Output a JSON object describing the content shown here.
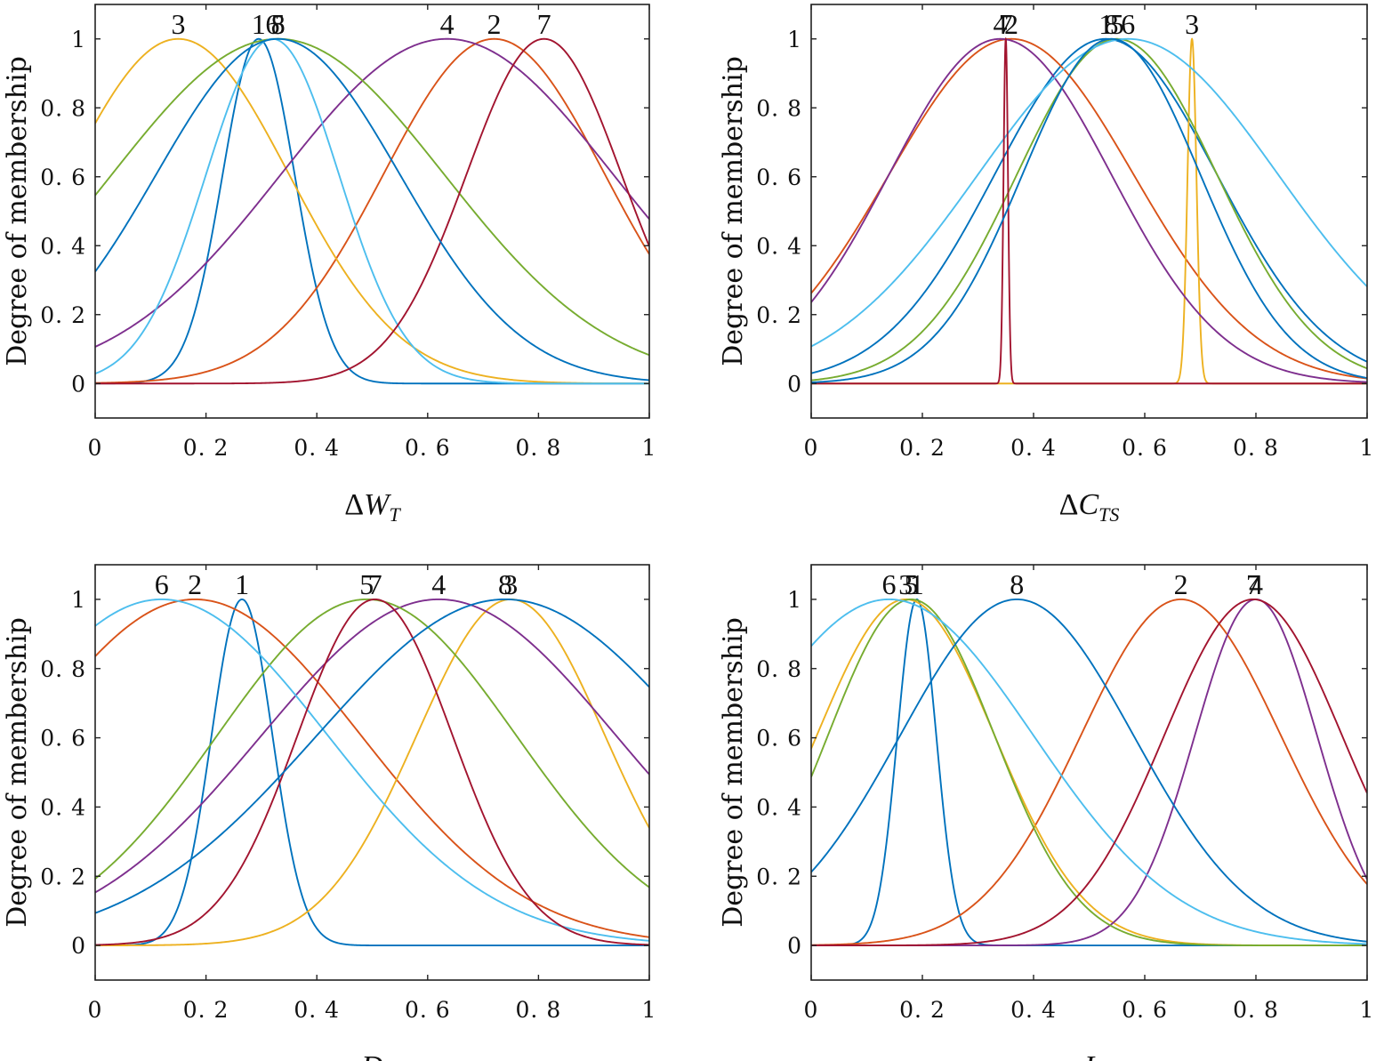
{
  "colors": [
    "#0072BD",
    "#D95319",
    "#EDB120",
    "#7E2F8E",
    "#77AC30",
    "#4DBEEE",
    "#A2142F",
    "#0072BD"
  ],
  "chart_data": [
    {
      "type": "line",
      "title": "",
      "xlabel_main": "ΔW",
      "xlabel_sub": "T",
      "ylabel": "Degree of membership",
      "xlim": [
        0,
        1
      ],
      "ylim": [
        -0.1,
        1.1
      ],
      "xticks": [
        0,
        0.2,
        0.4,
        0.6,
        0.8,
        1
      ],
      "xtick_labels": [
        "0",
        "0. 2",
        "0. 4",
        "0. 6",
        "0. 8",
        "1"
      ],
      "yticks": [
        0,
        0.2,
        0.4,
        0.6,
        0.8,
        1
      ],
      "ytick_labels": [
        "0",
        "0. 2",
        "0. 4",
        "0. 6",
        "0. 8",
        "1"
      ],
      "series": [
        {
          "name": "1",
          "center": 0.295,
          "sigma": 0.065
        },
        {
          "name": "2",
          "center": 0.72,
          "sigma": 0.2
        },
        {
          "name": "3",
          "center": 0.15,
          "sigma": 0.2
        },
        {
          "name": "4",
          "center": 0.635,
          "sigma": 0.3
        },
        {
          "name": "5",
          "center": 0.33,
          "sigma": 0.3
        },
        {
          "name": "6",
          "center": 0.32,
          "sigma": 0.12
        },
        {
          "name": "7",
          "center": 0.81,
          "sigma": 0.14
        },
        {
          "name": "8",
          "center": 0.33,
          "sigma": 0.22
        }
      ]
    },
    {
      "type": "line",
      "title": "",
      "xlabel_main": "ΔC",
      "xlabel_sub": "TS",
      "ylabel": "Degree of membership",
      "xlim": [
        0,
        1
      ],
      "ylim": [
        -0.1,
        1.1
      ],
      "xticks": [
        0,
        0.2,
        0.4,
        0.6,
        0.8,
        1
      ],
      "xtick_labels": [
        "0",
        "0. 2",
        "0. 4",
        "0. 6",
        "0. 8",
        "1"
      ],
      "yticks": [
        0,
        0.2,
        0.4,
        0.6,
        0.8,
        1
      ],
      "ytick_labels": [
        "0",
        "0. 2",
        "0. 4",
        "0. 6",
        "0. 8",
        "1"
      ],
      "series": [
        {
          "name": "1",
          "center": 0.53,
          "sigma": 0.2
        },
        {
          "name": "2",
          "center": 0.36,
          "sigma": 0.22
        },
        {
          "name": "3",
          "center": 0.685,
          "sigma": 0.008
        },
        {
          "name": "4",
          "center": 0.34,
          "sigma": 0.2
        },
        {
          "name": "5",
          "center": 0.55,
          "sigma": 0.18
        },
        {
          "name": "6",
          "center": 0.57,
          "sigma": 0.27
        },
        {
          "name": "7",
          "center": 0.35,
          "sigma": 0.004
        },
        {
          "name": "8",
          "center": 0.54,
          "sigma": 0.16
        }
      ]
    },
    {
      "type": "line",
      "title": "",
      "xlabel_main": "D",
      "xlabel_sub": "",
      "ylabel": "Degree of membership",
      "xlim": [
        0,
        1
      ],
      "ylim": [
        -0.1,
        1.1
      ],
      "xticks": [
        0,
        0.2,
        0.4,
        0.6,
        0.8,
        1
      ],
      "xtick_labels": [
        "0",
        "0. 2",
        "0. 4",
        "0. 6",
        "0. 8",
        "1"
      ],
      "yticks": [
        0,
        0.2,
        0.4,
        0.6,
        0.8,
        1
      ],
      "ytick_labels": [
        "0",
        "0. 2",
        "0. 4",
        "0. 6",
        "0. 8",
        "1"
      ],
      "series": [
        {
          "name": "1",
          "center": 0.265,
          "sigma": 0.055
        },
        {
          "name": "2",
          "center": 0.18,
          "sigma": 0.3
        },
        {
          "name": "3",
          "center": 0.75,
          "sigma": 0.17
        },
        {
          "name": "4",
          "center": 0.62,
          "sigma": 0.32
        },
        {
          "name": "5",
          "center": 0.49,
          "sigma": 0.27
        },
        {
          "name": "6",
          "center": 0.12,
          "sigma": 0.3
        },
        {
          "name": "7",
          "center": 0.505,
          "sigma": 0.14
        },
        {
          "name": "8",
          "center": 0.74,
          "sigma": 0.34
        }
      ]
    },
    {
      "type": "line",
      "title": "",
      "xlabel_main": "I",
      "xlabel_sub": "",
      "ylabel": "Degree of membership",
      "xlim": [
        0,
        1
      ],
      "ylim": [
        -0.1,
        1.1
      ],
      "xticks": [
        0,
        0.2,
        0.4,
        0.6,
        0.8,
        1
      ],
      "xtick_labels": [
        "0",
        "0. 2",
        "0. 4",
        "0. 6",
        "0. 8",
        "1"
      ],
      "yticks": [
        0,
        0.2,
        0.4,
        0.6,
        0.8,
        1
      ],
      "ytick_labels": [
        "0",
        "0. 2",
        "0. 4",
        "0. 6",
        "0. 8",
        "1"
      ],
      "series": [
        {
          "name": "1",
          "center": 0.19,
          "sigma": 0.035
        },
        {
          "name": "2",
          "center": 0.665,
          "sigma": 0.18
        },
        {
          "name": "3",
          "center": 0.17,
          "sigma": 0.16
        },
        {
          "name": "4",
          "center": 0.8,
          "sigma": 0.11
        },
        {
          "name": "5",
          "center": 0.18,
          "sigma": 0.15
        },
        {
          "name": "6",
          "center": 0.14,
          "sigma": 0.26
        },
        {
          "name": "7",
          "center": 0.795,
          "sigma": 0.16
        },
        {
          "name": "8",
          "center": 0.37,
          "sigma": 0.21
        }
      ]
    }
  ]
}
